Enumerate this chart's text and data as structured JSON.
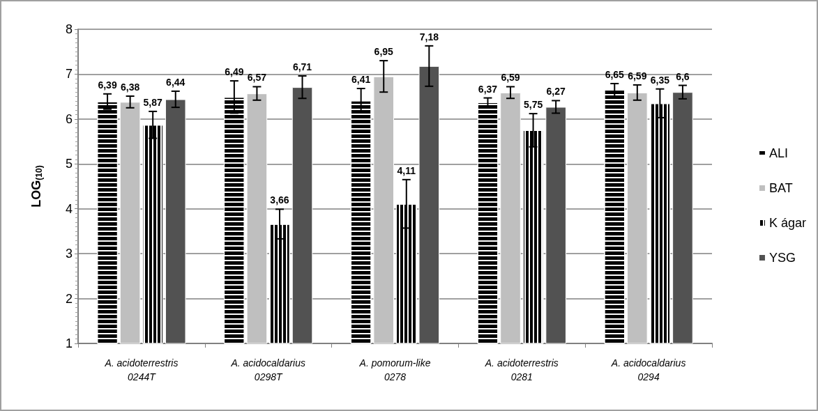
{
  "chart_data": {
    "type": "bar",
    "ylabel": "LOG$_{(10)}$",
    "categories": [
      "A. acidoterrestris\n0244T",
      "A. acidocaldarius\n0298T",
      "A. pomorum-like\n0278",
      "A. acidoterrestris\n0281",
      "A. acidocaldarius\n0294"
    ],
    "series": [
      {
        "name": "ALI",
        "color": "#000000",
        "values": [
          6.39,
          6.49,
          6.41,
          6.37,
          6.65
        ],
        "value_labels": [
          "6,39",
          "6,49",
          "6,41",
          "6,37",
          "6,65"
        ],
        "errors": [
          0.17,
          0.36,
          0.27,
          0.1,
          0.14
        ]
      },
      {
        "name": "BAT",
        "color": "#bfbfbf",
        "values": [
          6.38,
          6.57,
          6.95,
          6.59,
          6.59
        ],
        "value_labels": [
          "6,38",
          "6,57",
          "6,95",
          "6,59",
          "6,59"
        ],
        "errors": [
          0.13,
          0.15,
          0.35,
          0.13,
          0.17
        ]
      },
      {
        "name": "K ágar",
        "color": "#000000",
        "values": [
          5.87,
          3.66,
          4.11,
          5.75,
          6.35
        ],
        "value_labels": [
          "5,87",
          "3,66",
          "4,11",
          "5,75",
          "6,35"
        ],
        "errors": [
          0.3,
          0.33,
          0.54,
          0.37,
          0.32
        ]
      },
      {
        "name": "YSG",
        "color": "#525252",
        "values": [
          6.44,
          6.71,
          7.18,
          6.27,
          6.6
        ],
        "value_labels": [
          "6,44",
          "6,71",
          "7,18",
          "6,27",
          "6,6"
        ],
        "errors": [
          0.18,
          0.25,
          0.45,
          0.14,
          0.15
        ]
      }
    ],
    "ylim": [
      1,
      8
    ],
    "yticks": [
      1,
      2,
      3,
      4,
      5,
      6,
      7,
      8
    ],
    "grid": "y",
    "legend": "right"
  }
}
